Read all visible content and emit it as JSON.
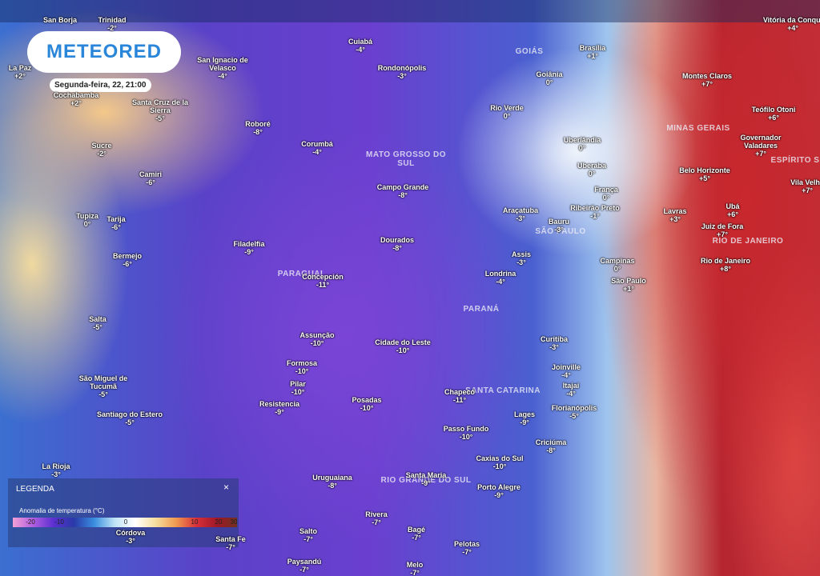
{
  "header": {
    "logo": "METEORED",
    "datetime": "Segunda-feira, 22, 21:00"
  },
  "regions": [
    "GOIÁS",
    "MINAS GERAIS",
    "MATO GROSSO DO SUL",
    "ESPÍRITO S",
    "SÃO PAULO",
    "RIO DE JANEIRO",
    "PARAGUAI",
    "PARANÁ",
    "SANTA CATARINA",
    "RIO GRANDE DO SUL"
  ],
  "cities": [
    {
      "name": "San Borja",
      "value": ""
    },
    {
      "name": "Trinidad",
      "value": "-2°"
    },
    {
      "name": "Vitória da Conqui",
      "value": "+4°"
    },
    {
      "name": "Cuiabá",
      "value": "-4°"
    },
    {
      "name": "Brasília",
      "value": "+1°"
    },
    {
      "name": "La Paz",
      "value": "+2°"
    },
    {
      "name": "San Ignacio de Velasco",
      "value": "-4°"
    },
    {
      "name": "Rondonópolis",
      "value": "-3°"
    },
    {
      "name": "Goiânia",
      "value": "0°"
    },
    {
      "name": "Montes Claros",
      "value": "+7°"
    },
    {
      "name": "Cochabamba",
      "value": "+2°"
    },
    {
      "name": "Santa Cruz de la Sierra",
      "value": "-5°"
    },
    {
      "name": "Rio Verde",
      "value": "0°"
    },
    {
      "name": "Teófilo Otoni",
      "value": "+6°"
    },
    {
      "name": "Sucre",
      "value": "-2°"
    },
    {
      "name": "Roboré",
      "value": "-8°"
    },
    {
      "name": "Corumbá",
      "value": "-4°"
    },
    {
      "name": "Uberlândia",
      "value": "0°"
    },
    {
      "name": "Governador Valadares",
      "value": "+7°"
    },
    {
      "name": "Camiri",
      "value": "-6°"
    },
    {
      "name": "Campo Grande",
      "value": "-8°"
    },
    {
      "name": "Uberaba",
      "value": "0°"
    },
    {
      "name": "Belo Horizonte",
      "value": "+5°"
    },
    {
      "name": "Vila Velha",
      "value": "+7°"
    },
    {
      "name": "França",
      "value": "0°"
    },
    {
      "name": "Tupiza",
      "value": "0°"
    },
    {
      "name": "Tarija",
      "value": "-6°"
    },
    {
      "name": "Araçatuba",
      "value": "-3°"
    },
    {
      "name": "Ribeirão Preto",
      "value": "-1°"
    },
    {
      "name": "Lavras",
      "value": "+3°"
    },
    {
      "name": "Ubá",
      "value": "+6°"
    },
    {
      "name": "Juiz de Fora",
      "value": "+7°"
    },
    {
      "name": "Dourados",
      "value": "-8°"
    },
    {
      "name": "Filadelfia",
      "value": "-9°"
    },
    {
      "name": "Bauru",
      "value": "-3°"
    },
    {
      "name": "Bermejo",
      "value": "-6°"
    },
    {
      "name": "Assis",
      "value": "-3°"
    },
    {
      "name": "Campinas",
      "value": "0°"
    },
    {
      "name": "Rio de Janeiro",
      "value": "+8°"
    },
    {
      "name": "Concepción",
      "value": "-11°"
    },
    {
      "name": "Londrina",
      "value": "-4°"
    },
    {
      "name": "São Paulo",
      "value": "+1°"
    },
    {
      "name": "Salta",
      "value": "-5°"
    },
    {
      "name": "Assunção",
      "value": "-10°"
    },
    {
      "name": "Cidade do Leste",
      "value": "-10°"
    },
    {
      "name": "Curitiba",
      "value": "-3°"
    },
    {
      "name": "Formosa",
      "value": "-10°"
    },
    {
      "name": "Joinville",
      "value": "-4°"
    },
    {
      "name": "São Miguel de Tucumã",
      "value": "-5°"
    },
    {
      "name": "Pilar",
      "value": "-10°"
    },
    {
      "name": "Itajaí",
      "value": "-4°"
    },
    {
      "name": "Chapecó",
      "value": "-11°"
    },
    {
      "name": "Resistencia",
      "value": "-9°"
    },
    {
      "name": "Posadas",
      "value": "-10°"
    },
    {
      "name": "Florianópolis",
      "value": "-5°"
    },
    {
      "name": "Santiago do Estero",
      "value": "-5°"
    },
    {
      "name": "Lages",
      "value": "-9°"
    },
    {
      "name": "Passo Fundo",
      "value": "-10°"
    },
    {
      "name": "Criciúma",
      "value": "-8°"
    },
    {
      "name": "Caxias do Sul",
      "value": "-10°"
    },
    {
      "name": "La Rioja",
      "value": "-3°"
    },
    {
      "name": "Uruguaiana",
      "value": "-8°"
    },
    {
      "name": "Santa Maria",
      "value": "-9°"
    },
    {
      "name": "Porto Alegre",
      "value": "-9°"
    },
    {
      "name": "Rivera",
      "value": "-7°"
    },
    {
      "name": "Bagé",
      "value": "-7°"
    },
    {
      "name": "Córdova",
      "value": "-3°"
    },
    {
      "name": "Salto",
      "value": "-7°"
    },
    {
      "name": "Santa Fe",
      "value": "-7°"
    },
    {
      "name": "Pelotas",
      "value": "-7°"
    },
    {
      "name": "Paysandú",
      "value": "-7°"
    },
    {
      "name": "Melo",
      "value": "-7°"
    }
  ],
  "legend": {
    "title": "LEGENDA",
    "subtitle": "Anomalia de temperatura (°C)",
    "close": "×",
    "scale": [
      "-20",
      "-10",
      "0",
      "10",
      "20",
      "30"
    ]
  }
}
